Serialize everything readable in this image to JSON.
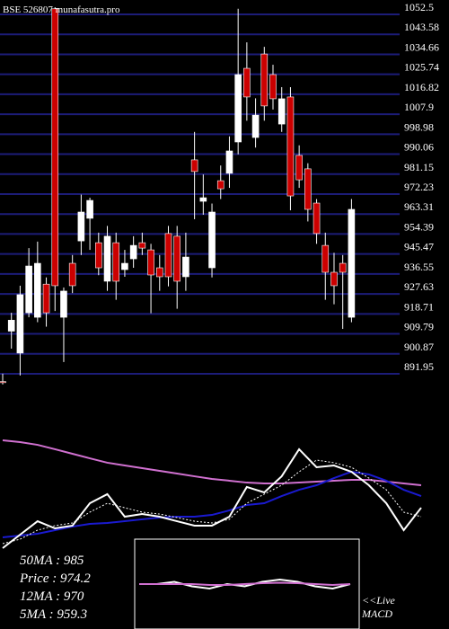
{
  "chart_data": [
    {
      "type": "candlestick",
      "title": "BSE 526807 munafasutra.pro",
      "open": [
        888.5,
        911,
        901.2,
        919.2,
        917.2,
        932,
        1055,
        917.2,
        941.3,
        951.3,
        961.4,
        950.5,
        933.3,
        950.5,
        938.5,
        943.3,
        950.5,
        947.3,
        939.3,
        954.6,
        953.4,
        935.3,
        987.5,
        969,
        939.3,
        978.2,
        981.5,
        995.5,
        1028.4,
        997.5,
        1034.8,
        1025.6,
        1003.5,
        1015.6,
        989.5,
        983.5,
        968.2,
        949.3,
        937.3,
        941.3,
        917.2
      ],
      "high": [
        892,
        919.2,
        931.3,
        948.1,
        951,
        935,
        1055.7,
        930.5,
        945,
        972,
        970.6,
        955,
        958,
        955,
        947.3,
        953.4,
        955,
        950,
        945,
        958,
        958,
        955,
        1000,
        981,
        968,
        985,
        998,
        1055,
        1040,
        1015,
        1038,
        1030,
        1020,
        1020,
        994,
        986,
        970,
        955,
        946,
        945,
        970
      ],
      "low": [
        887.2,
        903.2,
        891.2,
        917.2,
        915,
        913,
        920,
        897.2,
        928,
        945,
        947.3,
        936,
        929,
        925,
        935.3,
        939.3,
        945,
        919,
        929,
        931,
        921,
        929,
        961,
        963,
        935,
        970,
        975,
        990,
        1005,
        993,
        1005,
        1010,
        1000,
        965,
        975,
        960,
        950,
        925,
        923,
        912,
        915
      ],
      "close": [
        888,
        915.9,
        927.3,
        940.1,
        941.3,
        919.2,
        931.3,
        928.9,
        931.3,
        964.2,
        969.4,
        939.3,
        953.4,
        933.3,
        941.3,
        949.3,
        948.1,
        936.1,
        935.3,
        935.3,
        933.3,
        944.1,
        982.3,
        970.6,
        964.2,
        974.6,
        991.5,
        1025.6,
        1015.6,
        1007.5,
        1011.6,
        1014.8,
        1014.8,
        971.4,
        978.6,
        965.4,
        954.6,
        937.3,
        931.3,
        937.3,
        965.4
      ],
      "up_color": "#ffffff",
      "down_color": "#cc0000",
      "grid_color": "#1c1c78",
      "ylim": [
        884.32,
        1058.92
      ],
      "yticks": [
        1052.5,
        1043.58,
        1034.66,
        1025.74,
        1016.82,
        1007.9,
        998.98,
        990.06,
        981.15,
        972.23,
        963.31,
        954.39,
        945.47,
        936.55,
        927.63,
        918.71,
        909.79,
        900.87,
        891.95
      ],
      "grid": true
    },
    {
      "type": "line",
      "x": [
        0,
        2,
        4,
        6,
        8,
        10,
        12,
        14,
        16,
        18,
        20,
        22,
        24,
        26,
        28,
        30,
        32,
        34,
        36,
        38,
        40,
        42,
        44,
        46,
        48
      ],
      "xlim": [
        0,
        48
      ],
      "ylim": [
        0,
        100
      ],
      "series": [
        {
          "color": "#d070d0",
          "values": [
            85.7,
            84.3,
            82.1,
            78.6,
            75,
            71.4,
            67.9,
            65.7,
            63.6,
            61.4,
            59.3,
            57.1,
            55,
            53.6,
            52.1,
            51.4,
            51.4,
            52.1,
            52.9,
            53.6,
            54.3,
            54.3,
            52.9,
            51.4,
            50
          ]
        },
        {
          "color": "#1a1ad0",
          "values": [
            8.6,
            10,
            11.4,
            14.3,
            17.1,
            19.3,
            20,
            21.4,
            22.9,
            24.3,
            25,
            25,
            26.4,
            30,
            34.3,
            35.7,
            41.4,
            46.4,
            50,
            55.7,
            60.7,
            58.6,
            53.6,
            46.4,
            41.4
          ]
        },
        {
          "color": "#ffffff",
          "values": [
            0,
            10.7,
            21.4,
            15.7,
            17.9,
            35.7,
            42.9,
            25,
            27.1,
            25,
            21.4,
            17.9,
            17.9,
            25,
            48.6,
            44.3,
            57.1,
            78.6,
            64.3,
            65.7,
            60.7,
            50,
            35.7,
            14.3,
            32.1
          ]
        },
        {
          "color": "#ffffff",
          "dashed": true,
          "values": [
            3.6,
            7.1,
            14.3,
            17.9,
            20,
            28.6,
            35.7,
            32.1,
            28.6,
            27.1,
            24.3,
            21.4,
            20,
            22.9,
            35.7,
            42.9,
            50,
            60.7,
            70,
            67.9,
            64.3,
            55.7,
            46.4,
            28.6,
            25
          ]
        }
      ],
      "legend_texts": [
        "50MA : 985",
        "Price  : 974.2",
        "12MA : 970",
        "5MA : 959.3"
      ]
    },
    {
      "type": "line",
      "annotations": [
        "<<Live",
        "MACD"
      ],
      "x": [
        0,
        1,
        2,
        3,
        4,
        5,
        6,
        7,
        8,
        9,
        10,
        11,
        12
      ],
      "xlim": [
        0,
        12
      ],
      "ylim": [
        -10,
        10
      ],
      "series": [
        {
          "color": "#ffffff",
          "values": [
            0,
            0,
            0.5,
            -0.5,
            -1,
            0,
            -0.5,
            0.5,
            1,
            0.5,
            -0.5,
            -1,
            0
          ]
        },
        {
          "color": "#d070d0",
          "values": [
            0,
            0,
            0,
            0,
            -0.2,
            -0.2,
            0,
            0.2,
            0.3,
            0.2,
            0,
            -0.2,
            0
          ]
        }
      ]
    }
  ]
}
